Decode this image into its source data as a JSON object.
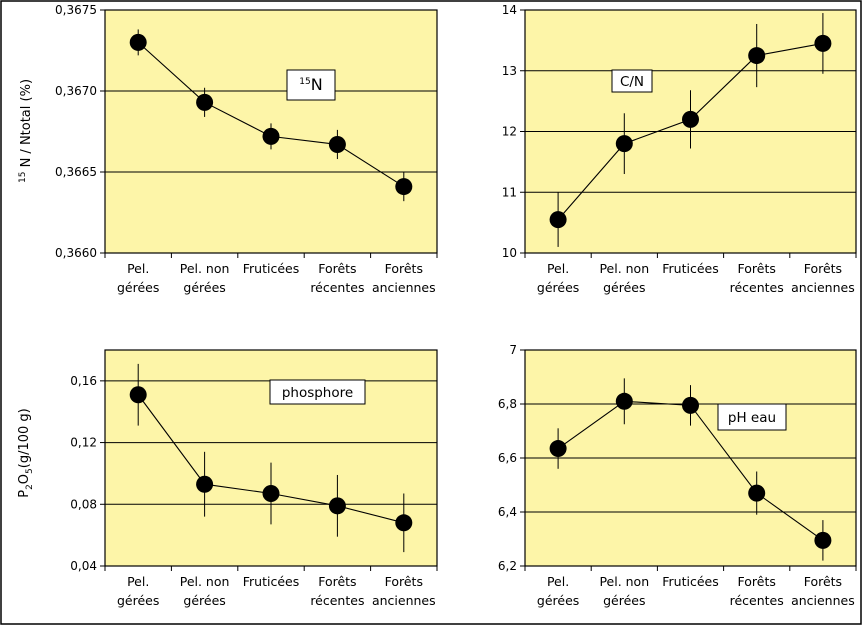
{
  "categories": [
    [
      "Pel.",
      "gérées"
    ],
    [
      "Pel. non",
      "gérées"
    ],
    [
      "Fruticées"
    ],
    [
      "Forêts",
      "récentes"
    ],
    [
      "Forêts",
      "anciennes"
    ]
  ],
  "colors": {
    "plot_bg": "#fdf5a8",
    "marker": "#000000",
    "frame": "#000000"
  },
  "chart_data": [
    {
      "type": "line",
      "legend_label": "15N",
      "ylabel": "15 N / Ntotal (%)",
      "ylim": [
        0.366,
        0.3675
      ],
      "yticks": [
        "0,3660",
        "0,3665",
        "0,3670",
        "0,3675"
      ],
      "values": [
        0.3673,
        0.36693,
        0.36672,
        0.36667,
        0.36641
      ],
      "errors": [
        8e-05,
        9e-05,
        8e-05,
        9e-05,
        9e-05
      ]
    },
    {
      "type": "line",
      "legend_label": "C/N",
      "ylabel": "",
      "ylim": [
        10,
        14
      ],
      "yticks": [
        "10",
        "11",
        "12",
        "13",
        "14"
      ],
      "values": [
        10.55,
        11.8,
        12.2,
        13.25,
        13.45
      ],
      "errors": [
        0.45,
        0.5,
        0.48,
        0.52,
        0.5
      ]
    },
    {
      "type": "line",
      "legend_label": "phosphore",
      "ylabel": "P2O5(g/100 g)",
      "ylim": [
        0.04,
        0.18
      ],
      "yticks": [
        "0,04",
        "0,08",
        "0,12",
        "0,16"
      ],
      "values": [
        0.151,
        0.093,
        0.087,
        0.079,
        0.068
      ],
      "errors": [
        0.02,
        0.021,
        0.02,
        0.02,
        0.019
      ]
    },
    {
      "type": "line",
      "legend_label": "pH eau",
      "ylabel": "",
      "ylim": [
        6.2,
        7.0
      ],
      "yticks": [
        "6,2",
        "6,4",
        "6,6",
        "6,8",
        "7"
      ],
      "values": [
        6.635,
        6.81,
        6.795,
        6.47,
        6.295
      ],
      "errors": [
        0.075,
        0.085,
        0.075,
        0.08,
        0.075
      ]
    }
  ]
}
